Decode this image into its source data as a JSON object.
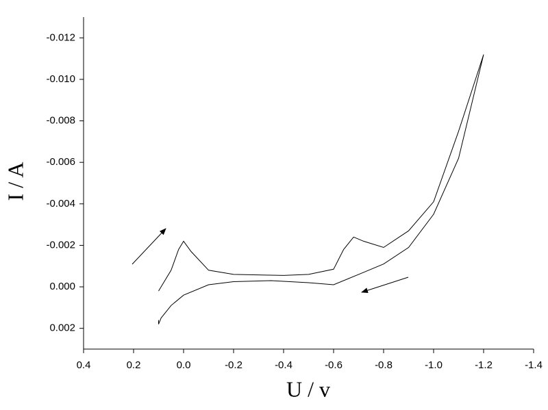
{
  "chart_data": {
    "type": "line",
    "x_label": "U / v",
    "y_label": "I / A",
    "color": "#000000",
    "xlim": [
      0.4,
      -1.4
    ],
    "xticks": [
      {
        "value": 0.4,
        "label": "0.4"
      },
      {
        "value": 0.2,
        "label": "0.2"
      },
      {
        "value": 0,
        "label": "0.0"
      },
      {
        "value": -0.2,
        "label": "-0.2"
      },
      {
        "value": -0.4,
        "label": "-0.4"
      },
      {
        "value": -0.6,
        "label": "-0.6"
      },
      {
        "value": -0.8,
        "label": "-0.8"
      },
      {
        "value": -1.0,
        "label": "-1.0"
      },
      {
        "value": -1.2,
        "label": "-1.2"
      },
      {
        "value": -1.4,
        "label": "-1.4"
      }
    ],
    "ylim": [
      0.003,
      -0.013
    ],
    "yticks": [
      {
        "value": 0.002,
        "label": "0.002"
      },
      {
        "value": 0,
        "label": "0.000"
      },
      {
        "value": -0.002,
        "label": "-0.002"
      },
      {
        "value": -0.004,
        "label": "-0.004"
      },
      {
        "value": -0.006,
        "label": "-0.006"
      },
      {
        "value": -0.008,
        "label": "-0.008"
      },
      {
        "value": -0.01,
        "label": "-0.010"
      },
      {
        "value": -0.012,
        "label": "-0.012"
      }
    ],
    "x": [
      0.1,
      0.05,
      0.02,
      0.0,
      -0.03,
      -0.1,
      -0.2,
      -0.4,
      -0.5,
      -0.6,
      -0.64,
      -0.68,
      -0.72,
      -0.8,
      -0.9,
      -1.0,
      -1.1,
      -1.2,
      -1.1,
      -1.0,
      -0.9,
      -0.8,
      -0.7,
      -0.6,
      -0.5,
      -0.35,
      -0.2,
      -0.1,
      0.0,
      0.05,
      0.09,
      0.1,
      0.1
    ],
    "values": [
      0.0002,
      -0.0008,
      -0.0018,
      -0.0022,
      -0.0017,
      -0.0008,
      -0.0006,
      -0.00055,
      -0.0006,
      -0.00085,
      -0.0018,
      -0.0024,
      -0.0022,
      -0.0019,
      -0.0027,
      -0.0041,
      -0.0075,
      -0.0112,
      -0.0062,
      -0.0035,
      -0.0019,
      -0.0011,
      -0.0006,
      -0.0001,
      -0.0002,
      -0.0003,
      -0.00025,
      -0.0001,
      0.0004,
      0.0009,
      0.0015,
      0.0018,
      0.0016
    ]
  }
}
